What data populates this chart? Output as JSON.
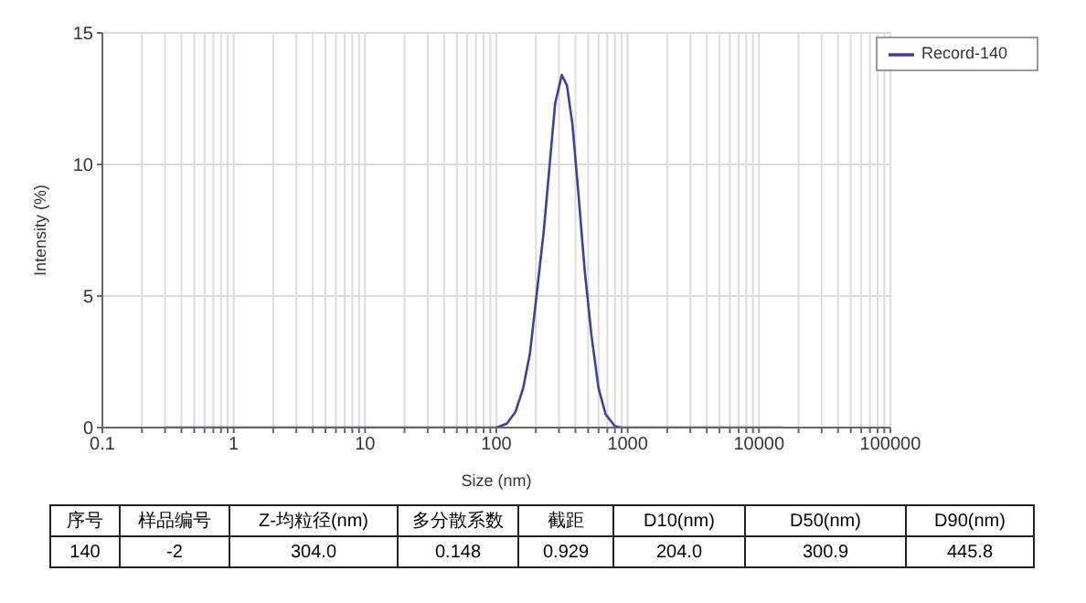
{
  "chart_data": {
    "type": "line",
    "xlabel": "Size (nm)",
    "ylabel": "Intensity (%)",
    "log": "x",
    "xlim": [
      0.1,
      100000
    ],
    "xticks": [
      0.1,
      {
        "value": 0.2,
        "label": null
      },
      {
        "value": 0.3,
        "label": null
      },
      {
        "value": 0.4,
        "label": null
      },
      {
        "value": 0.5,
        "label": null
      },
      {
        "value": 0.6,
        "label": null
      },
      {
        "value": 0.7,
        "label": null
      },
      {
        "value": 0.8,
        "label": null
      },
      {
        "value": 0.9,
        "label": null
      },
      1,
      {
        "value": 2,
        "label": null
      },
      {
        "value": 3,
        "label": null
      },
      {
        "value": 4,
        "label": null
      },
      {
        "value": 5,
        "label": null
      },
      {
        "value": 6,
        "label": null
      },
      {
        "value": 7,
        "label": null
      },
      {
        "value": 8,
        "label": null
      },
      {
        "value": 9,
        "label": null
      },
      10,
      {
        "value": 20,
        "label": null
      },
      {
        "value": 30,
        "label": null
      },
      {
        "value": 40,
        "label": null
      },
      {
        "value": 50,
        "label": null
      },
      {
        "value": 60,
        "label": null
      },
      {
        "value": 70,
        "label": null
      },
      {
        "value": 80,
        "label": null
      },
      {
        "value": 90,
        "label": null
      },
      100,
      {
        "value": 200,
        "label": null
      },
      {
        "value": 300,
        "label": null
      },
      {
        "value": 400,
        "label": null
      },
      {
        "value": 500,
        "label": null
      },
      {
        "value": 600,
        "label": null
      },
      {
        "value": 700,
        "label": null
      },
      {
        "value": 800,
        "label": null
      },
      {
        "value": 900,
        "label": null
      },
      1000,
      {
        "value": 2000,
        "label": null
      },
      {
        "value": 3000,
        "label": null
      },
      {
        "value": 4000,
        "label": null
      },
      {
        "value": 5000,
        "label": null
      },
      {
        "value": 6000,
        "label": null
      },
      {
        "value": 7000,
        "label": null
      },
      {
        "value": 8000,
        "label": null
      },
      {
        "value": 9000,
        "label": null
      },
      10000,
      {
        "value": 20000,
        "label": null
      },
      {
        "value": 30000,
        "label": null
      },
      {
        "value": 40000,
        "label": null
      },
      {
        "value": 50000,
        "label": null
      },
      {
        "value": 60000,
        "label": null
      },
      {
        "value": 70000,
        "label": null
      },
      {
        "value": 80000,
        "label": null
      },
      {
        "value": 90000,
        "label": null
      },
      100000
    ],
    "ylim": [
      0,
      15
    ],
    "yticks": [
      0,
      5,
      10,
      15
    ],
    "grid": true,
    "legend": "top right",
    "marker": "none",
    "line_style": "solid",
    "x": [
      0.3,
      1,
      10,
      50,
      100,
      120,
      140,
      160,
      180,
      200,
      230,
      260,
      280,
      315,
      345,
      380,
      420,
      470,
      530,
      600,
      680,
      800,
      900,
      1000,
      15000
    ],
    "series": [
      {
        "name": "Record-140",
        "color": "#3f3f9f",
        "values": [
          0,
          0,
          0,
          0,
          0,
          0.15,
          0.6,
          1.5,
          2.8,
          4.8,
          7.5,
          10.5,
          12.3,
          13.4,
          13.0,
          11.5,
          9,
          6,
          3.5,
          1.5,
          0.5,
          0.05,
          0,
          0,
          0
        ]
      }
    ],
    "annotations": [
      "序号",
      "样品编号",
      "Z-均粒径(nm)",
      "多分散系数",
      "截距",
      "D10(nm)",
      "D50(nm)",
      "D90(nm)",
      "140",
      "-2",
      "304.0",
      "0.148",
      "0.929",
      "204.0",
      "300.9",
      "445.8"
    ]
  }
}
